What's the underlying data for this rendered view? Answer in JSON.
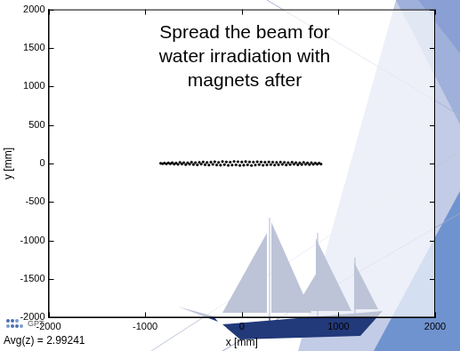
{
  "chart_data": {
    "type": "scatter",
    "annotation": [
      "Spread the beam for",
      "water irradiation with",
      "magnets after"
    ],
    "x_label": "x [mm]",
    "y_label": "y [mm]",
    "logo_text": "GPT",
    "footer": "Avg(z) = 2.99241",
    "color": "#000000",
    "marker": "dot",
    "grid": false,
    "xlim": [
      -2000,
      2000
    ],
    "xticks": [
      -2000,
      -1000,
      0,
      1000,
      2000
    ],
    "ylim": [
      -2000,
      2000
    ],
    "yticks": [
      -2000,
      -1500,
      -1000,
      -500,
      0,
      500,
      1000,
      1500,
      2000
    ],
    "x": [
      -840,
      -820,
      -800,
      -780,
      -760,
      -740,
      -720,
      -700,
      -680,
      -660,
      -640,
      -620,
      -600,
      -580,
      -560,
      -540,
      -520,
      -500,
      -480,
      -460,
      -440,
      -420,
      -400,
      -380,
      -360,
      -340,
      -320,
      -300,
      -280,
      -260,
      -240,
      -220,
      -200,
      -180,
      -160,
      -140,
      -120,
      -100,
      -80,
      -60,
      -40,
      -20,
      0,
      20,
      40,
      60,
      80,
      100,
      120,
      140,
      160,
      180,
      200,
      220,
      240,
      260,
      280,
      300,
      320,
      340,
      360,
      380,
      400,
      420,
      440,
      460,
      480,
      500,
      520,
      540,
      560,
      580,
      600,
      620,
      640,
      660,
      680,
      700,
      720,
      740,
      760,
      780,
      800,
      820
    ],
    "values": [
      2,
      -3,
      5,
      -6,
      8,
      -4,
      10,
      -9,
      6,
      -12,
      14,
      -7,
      11,
      -15,
      9,
      -10,
      16,
      -13,
      12,
      -18,
      15,
      -8,
      20,
      -16,
      13,
      -20,
      18,
      -11,
      22,
      -19,
      14,
      -22,
      25,
      -15,
      20,
      -24,
      17,
      -21,
      26,
      -18,
      23,
      -25,
      19,
      -22,
      24,
      -17,
      21,
      -26,
      18,
      -20,
      22,
      -15,
      19,
      -23,
      16,
      -18,
      20,
      -14,
      17,
      -21,
      13,
      -16,
      18,
      -12,
      15,
      -19,
      11,
      -14,
      16,
      -10,
      12,
      -16,
      9,
      -13,
      14,
      -11,
      8,
      -14,
      10,
      -12,
      6,
      -10,
      4,
      -8
    ]
  }
}
